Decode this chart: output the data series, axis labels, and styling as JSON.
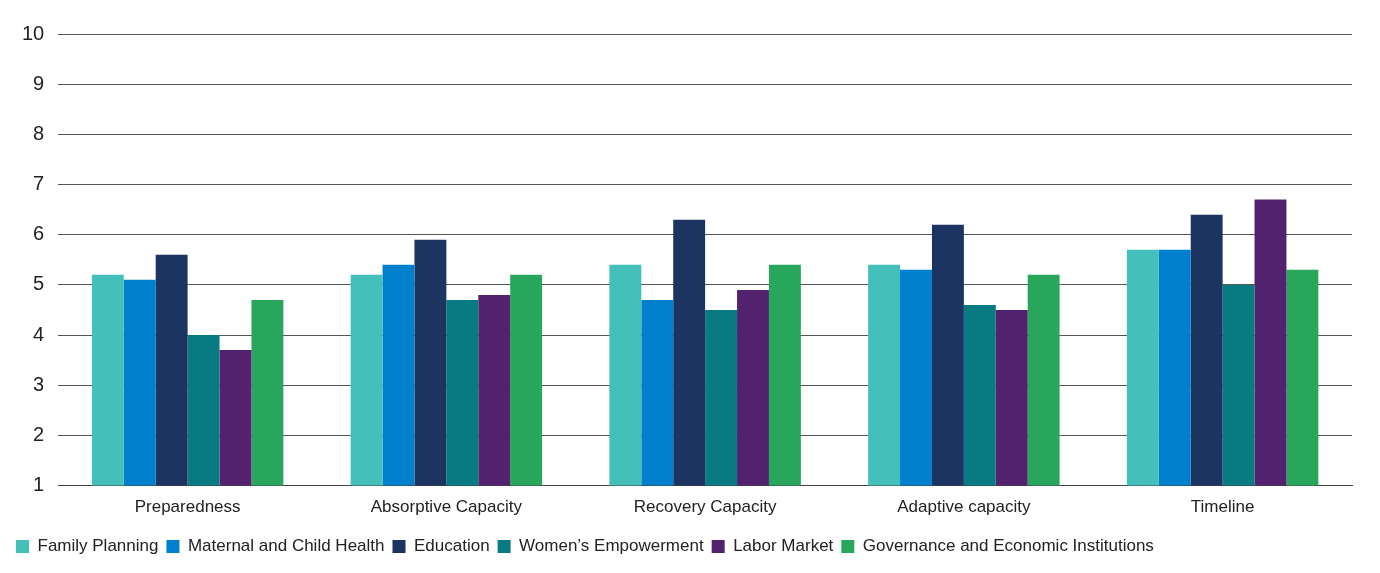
{
  "chart_data": {
    "type": "bar",
    "categories": [
      "Preparedness",
      "Absorptive Capacity",
      "Recovery Capacity",
      "Adaptive capacity",
      "Timeline"
    ],
    "series": [
      {
        "name": "Family Planning",
        "color": "#42c0b9",
        "values": [
          5.2,
          5.2,
          5.4,
          5.4,
          5.7
        ]
      },
      {
        "name": "Maternal and Child Health",
        "color": "#0080cc",
        "values": [
          5.1,
          5.4,
          4.7,
          5.3,
          5.7
        ]
      },
      {
        "name": "Education",
        "color": "#1c3461",
        "values": [
          5.6,
          5.9,
          6.3,
          6.2,
          6.4
        ]
      },
      {
        "name": "Women’s Empowerment",
        "color": "#077a82",
        "values": [
          4.0,
          4.7,
          4.5,
          4.6,
          5.0
        ]
      },
      {
        "name": "Labor Market",
        "color": "#53226f",
        "values": [
          3.7,
          4.8,
          4.9,
          4.5,
          6.7
        ]
      },
      {
        "name": "Governance and Economic Institutions",
        "color": "#27a65c",
        "values": [
          4.7,
          5.2,
          5.4,
          5.2,
          5.3
        ]
      }
    ],
    "ylim": [
      1,
      10
    ],
    "yticks": [
      1,
      2,
      3,
      4,
      5,
      6,
      7,
      8,
      9,
      10
    ],
    "grid": "y",
    "legend": "bottom left"
  }
}
